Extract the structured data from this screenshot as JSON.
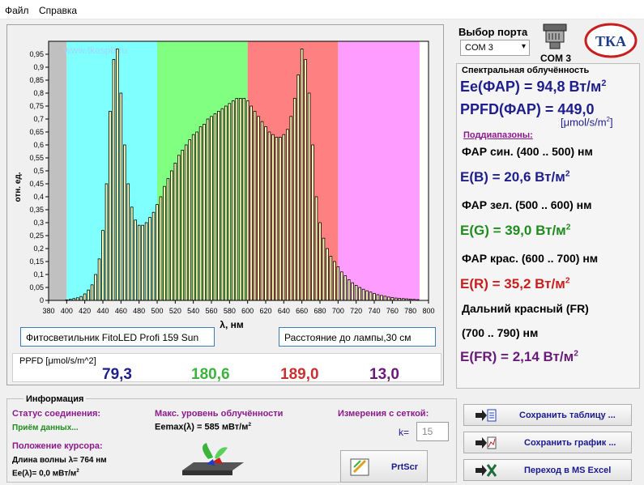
{
  "menu": {
    "file": "Файл",
    "help": "Справка"
  },
  "chart": {
    "watermark": "www.tkaspb.ru",
    "xlabel": "λ, нм",
    "ylabel": "отн. ед.",
    "device": "Фитосветильник FitoLED Profi 159 Sun",
    "distance": "Расстояние до лампы,30 см"
  },
  "chart_data": {
    "type": "bar",
    "xlim": [
      380,
      800
    ],
    "ylim": [
      0,
      1.0
    ],
    "xticks": [
      380,
      400,
      420,
      440,
      460,
      480,
      500,
      520,
      540,
      560,
      580,
      600,
      620,
      640,
      660,
      680,
      700,
      720,
      740,
      760,
      780,
      800
    ],
    "yticks": [
      0,
      0.05,
      0.1,
      0.15,
      0.2,
      0.25,
      0.3,
      0.35,
      0.4,
      0.45,
      0.5,
      0.55,
      0.6,
      0.65,
      0.7,
      0.75,
      0.8,
      0.85,
      0.9,
      0.95
    ],
    "ytick_labels": [
      "0",
      "0,05",
      "0,1",
      "0,15",
      "0,2",
      "0,25",
      "0,3",
      "0,35",
      "0,4",
      "0,45",
      "0,5",
      "0,55",
      "0,6",
      "0,65",
      "0,7",
      "0,75",
      "0,8",
      "0,85",
      "0,9",
      "0,95"
    ],
    "bands": [
      {
        "from": 380,
        "to": 400,
        "color": "#c0c0c0"
      },
      {
        "from": 400,
        "to": 500,
        "color": "#80ffff"
      },
      {
        "from": 500,
        "to": 600,
        "color": "#80ff80"
      },
      {
        "from": 600,
        "to": 700,
        "color": "#ff8080"
      },
      {
        "from": 700,
        "to": 790,
        "color": "#ff9cff"
      }
    ],
    "bar_color": "#ffffb8",
    "x": [
      400,
      404,
      408,
      412,
      416,
      420,
      424,
      428,
      432,
      436,
      440,
      444,
      448,
      452,
      456,
      460,
      464,
      468,
      472,
      476,
      480,
      484,
      488,
      492,
      496,
      500,
      504,
      508,
      512,
      516,
      520,
      524,
      528,
      532,
      536,
      540,
      544,
      548,
      552,
      556,
      560,
      564,
      568,
      572,
      576,
      580,
      584,
      588,
      592,
      596,
      600,
      604,
      608,
      612,
      616,
      620,
      624,
      628,
      632,
      636,
      640,
      644,
      648,
      652,
      656,
      660,
      664,
      668,
      672,
      676,
      680,
      684,
      688,
      692,
      696,
      700,
      704,
      708,
      712,
      716,
      720,
      724,
      728,
      732,
      736,
      740,
      744,
      748,
      752,
      756,
      760,
      764,
      768,
      772,
      776,
      780,
      784,
      788
    ],
    "values": [
      0.002,
      0.004,
      0.007,
      0.01,
      0.015,
      0.025,
      0.04,
      0.06,
      0.1,
      0.16,
      0.27,
      0.45,
      0.73,
      0.93,
      0.97,
      0.8,
      0.6,
      0.45,
      0.36,
      0.31,
      0.29,
      0.29,
      0.3,
      0.32,
      0.34,
      0.37,
      0.4,
      0.44,
      0.47,
      0.5,
      0.53,
      0.56,
      0.58,
      0.6,
      0.62,
      0.64,
      0.65,
      0.67,
      0.68,
      0.7,
      0.71,
      0.72,
      0.73,
      0.74,
      0.75,
      0.76,
      0.77,
      0.78,
      0.78,
      0.78,
      0.77,
      0.75,
      0.73,
      0.71,
      0.69,
      0.67,
      0.65,
      0.64,
      0.63,
      0.63,
      0.64,
      0.66,
      0.71,
      0.78,
      0.87,
      0.97,
      0.93,
      0.8,
      0.6,
      0.4,
      0.3,
      0.24,
      0.2,
      0.17,
      0.15,
      0.13,
      0.11,
      0.095,
      0.08,
      0.068,
      0.058,
      0.05,
      0.043,
      0.037,
      0.032,
      0.027,
      0.022,
      0.019,
      0.016,
      0.013,
      0.011,
      0.009,
      0.008,
      0.007,
      0.006,
      0.005,
      0.004,
      0.003
    ]
  },
  "ppfd": {
    "label": "PPFD [μmol/s/m^2]",
    "values": [
      "79,3",
      "180,6",
      "189,0",
      "13,0"
    ],
    "colors": [
      "#1e1e8c",
      "#3cb43c",
      "#c83232",
      "#6a1a7a"
    ]
  },
  "port": {
    "title": "Выбор порта",
    "selected": "COM 3",
    "name": "COM 3"
  },
  "logo": {
    "text": "ТКА"
  },
  "irradiance": {
    "title": "Спектральная облучённость",
    "ee_par": "Ee(ФАР) = 94,8 Вт/м",
    "ppfd_par": "PPFD(ФАР) = 449,0",
    "ppfd_unit": "[μmol/s/m",
    "subranges": "Поддиапазоны:",
    "blue_label": "ФАР син. (400 .. 500) нм",
    "blue_value": "E(B) = 20,6 Вт/м",
    "green_label": "ФАР зел. (500 .. 600) нм",
    "green_value": "E(G) = 39,0 Вт/м",
    "red_label": "ФАР крас. (600 .. 700) нм",
    "red_value": "E(R) = 35,2 Вт/м",
    "fr_label1": "Дальний красный (FR)",
    "fr_label2": "(700 .. 790) нм",
    "fr_value": "E(FR) = 2,14 Вт/м",
    "sup2": "2",
    "close_bracket": "]"
  },
  "info": {
    "title": "Информация",
    "status_label": "Статус соединения:",
    "status_value": "Приём данных...",
    "cursor_label": "Положение курсора:",
    "wavelength": "Длина волны λ= 764 нм",
    "ee_lambda": "Ee(λ)= 0,0 мВт/м",
    "max_label": "Макс. уровень облучённости",
    "eemax": "Eemax(λ) = 585 мВт/м",
    "grid_label": "Измерения с сеткой:",
    "k_label": "k=",
    "k_value": "15",
    "prtscr": "PrtScr"
  },
  "buttons": {
    "save_table": "Сохранить таблицу ...",
    "save_chart": "Сохранить график ...",
    "excel": "Переход в MS Excel"
  }
}
